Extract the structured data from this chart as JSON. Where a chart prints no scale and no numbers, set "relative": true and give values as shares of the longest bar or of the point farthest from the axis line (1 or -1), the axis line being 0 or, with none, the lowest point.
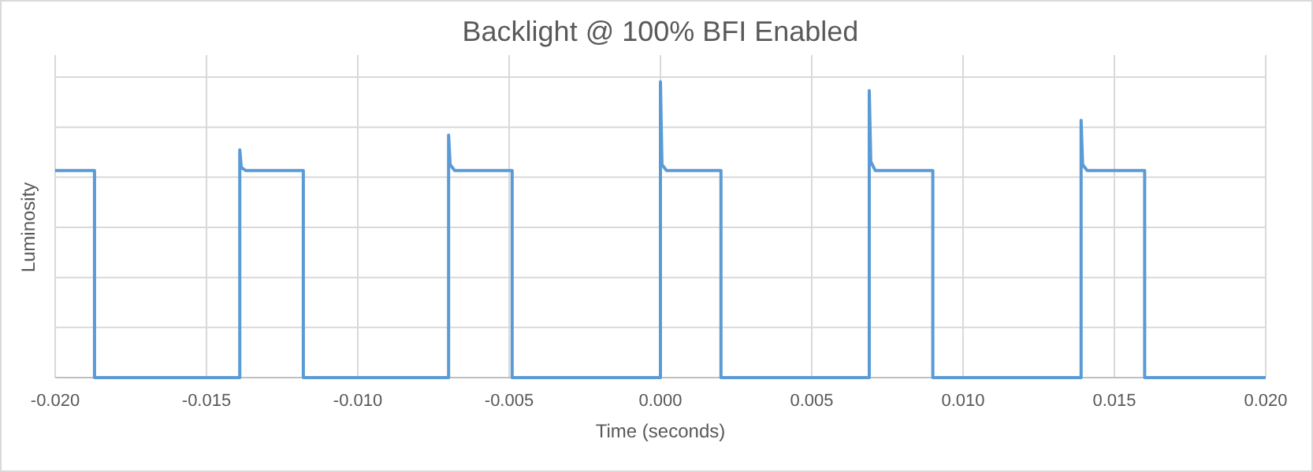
{
  "chart_data": {
    "type": "line",
    "title": "Backlight @ 100% BFI Enabled",
    "xlabel": "Time (seconds)",
    "ylabel": "Luminosity",
    "relative": true,
    "grid": true,
    "xlim": [
      -0.02,
      0.02
    ],
    "xticks": [
      {
        "value": -0.02,
        "label": "-0.020"
      },
      {
        "value": -0.015,
        "label": "-0.015"
      },
      {
        "value": -0.01,
        "label": "-0.010"
      },
      {
        "value": -0.005,
        "label": "-0.005"
      },
      {
        "value": 0,
        "label": "0.000"
      },
      {
        "value": 0.005,
        "label": "0.005"
      },
      {
        "value": 0.01,
        "label": "0.010"
      },
      {
        "value": 0.015,
        "label": "0.015"
      },
      {
        "value": 0.02,
        "label": "0.020"
      }
    ],
    "series": [
      {
        "color": "#5b9bd5",
        "x": [
          -0.02,
          -0.0187,
          -0.0187,
          -0.0139,
          -0.0139,
          -0.01385,
          -0.0137,
          -0.0118,
          -0.0118,
          -0.007,
          -0.007,
          -0.00695,
          -0.0068,
          -0.0049,
          -0.0049,
          0,
          0,
          5e-05,
          0.0002,
          0.002,
          0.002,
          0.0069,
          0.0069,
          0.00695,
          0.0071,
          0.009,
          0.009,
          0.0139,
          0.0139,
          0.01395,
          0.0141,
          0.016,
          0.016,
          0.02
        ],
        "values": [
          0.7,
          0.7,
          0,
          0,
          0.77,
          0.71,
          0.7,
          0.7,
          0,
          0,
          0.82,
          0.72,
          0.7,
          0.7,
          0,
          0,
          1,
          0.72,
          0.7,
          0.7,
          0,
          0,
          0.97,
          0.73,
          0.7,
          0.7,
          0,
          0,
          0.87,
          0.72,
          0.7,
          0.7,
          0,
          0
        ]
      }
    ]
  }
}
